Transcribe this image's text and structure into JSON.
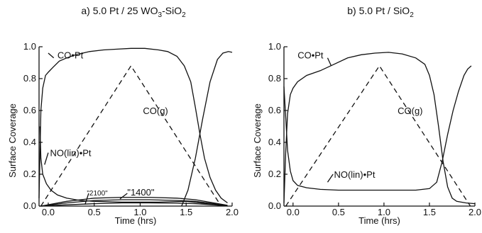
{
  "chart_data": [
    {
      "type": "line",
      "title_parts": [
        "a)  5.0 Pt / 25 WO",
        "3",
        "-SiO",
        "2"
      ],
      "xlabel": "Time (hrs)",
      "ylabel": "Surface Coverage",
      "xlim": [
        -0.1,
        2.0
      ],
      "ylim": [
        0.0,
        1.0
      ],
      "xticks": [
        0.0,
        0.5,
        1.0,
        1.5,
        2.0
      ],
      "yticks": [
        0.0,
        0.2,
        0.4,
        0.6,
        0.8,
        1.0
      ],
      "xtick_labels": [
        "0.0",
        "0.5",
        "1.0",
        "1.5",
        "2.0"
      ],
      "ytick_labels": [
        "0.0",
        "0.2",
        "0.4",
        "0.6",
        "0.8",
        "1.0"
      ],
      "grid": false,
      "series": [
        {
          "name": "CO•Pt",
          "style": "solid",
          "points": [
            [
              -0.1,
              0.05
            ],
            [
              -0.08,
              0.6
            ],
            [
              -0.06,
              0.74
            ],
            [
              -0.03,
              0.82
            ],
            [
              0.0,
              0.84
            ],
            [
              0.05,
              0.87
            ],
            [
              0.12,
              0.91
            ],
            [
              0.2,
              0.93
            ],
            [
              0.3,
              0.95
            ],
            [
              0.45,
              0.97
            ],
            [
              0.6,
              0.98
            ],
            [
              0.75,
              0.985
            ],
            [
              0.9,
              0.99
            ],
            [
              1.05,
              0.99
            ],
            [
              1.2,
              0.98
            ],
            [
              1.3,
              0.97
            ],
            [
              1.4,
              0.94
            ],
            [
              1.48,
              0.88
            ],
            [
              1.55,
              0.78
            ],
            [
              1.6,
              0.62
            ],
            [
              1.65,
              0.45
            ],
            [
              1.7,
              0.3
            ],
            [
              1.76,
              0.18
            ],
            [
              1.82,
              0.1
            ],
            [
              1.88,
              0.05
            ],
            [
              1.95,
              0.02
            ]
          ]
        },
        {
          "name": "CO(g)",
          "style": "dashed",
          "points": [
            [
              -0.08,
              0.0
            ],
            [
              0.9,
              0.88
            ],
            [
              1.88,
              0.0
            ]
          ]
        },
        {
          "name": "NO(lin)•Pt",
          "style": "solid",
          "points": [
            [
              -0.09,
              0.5
            ],
            [
              -0.08,
              0.3
            ],
            [
              -0.06,
              0.2
            ],
            [
              -0.02,
              0.14
            ],
            [
              0.03,
              0.1
            ],
            [
              0.1,
              0.07
            ],
            [
              0.2,
              0.05
            ],
            [
              0.35,
              0.035
            ],
            [
              0.5,
              0.03
            ],
            [
              0.8,
              0.025
            ],
            [
              1.2,
              0.025
            ],
            [
              1.5,
              0.03
            ],
            [
              1.65,
              0.02
            ],
            [
              1.8,
              0.01
            ],
            [
              1.95,
              0.0
            ]
          ]
        },
        {
          "name": "",
          "style": "solid",
          "points": [
            [
              1.45,
              0.0
            ],
            [
              1.52,
              0.1
            ],
            [
              1.6,
              0.3
            ],
            [
              1.68,
              0.55
            ],
            [
              1.76,
              0.78
            ],
            [
              1.84,
              0.92
            ],
            [
              1.9,
              0.96
            ],
            [
              1.96,
              0.97
            ],
            [
              2.0,
              0.965
            ]
          ]
        },
        {
          "name": "",
          "style": "solid",
          "points": [
            [
              -0.08,
              0.0
            ],
            [
              0.2,
              0.03
            ],
            [
              0.5,
              0.05
            ],
            [
              0.8,
              0.055
            ],
            [
              1.1,
              0.055
            ],
            [
              1.4,
              0.05
            ],
            [
              1.6,
              0.04
            ],
            [
              1.8,
              0.02
            ],
            [
              1.95,
              0.005
            ]
          ]
        },
        {
          "name": "",
          "style": "solid",
          "points": [
            [
              -0.08,
              0.0
            ],
            [
              0.2,
              0.02
            ],
            [
              0.5,
              0.035
            ],
            [
              0.8,
              0.04
            ],
            [
              1.1,
              0.04
            ],
            [
              1.4,
              0.035
            ],
            [
              1.6,
              0.03
            ],
            [
              1.8,
              0.015
            ],
            [
              1.95,
              0.003
            ]
          ]
        },
        {
          "name": "",
          "style": "solid",
          "points": [
            [
              -0.08,
              0.0
            ],
            [
              0.2,
              0.008
            ],
            [
              0.5,
              0.015
            ],
            [
              0.8,
              0.02
            ],
            [
              1.1,
              0.02
            ],
            [
              1.4,
              0.018
            ],
            [
              1.6,
              0.015
            ],
            [
              1.8,
              0.008
            ],
            [
              1.95,
              0.0
            ]
          ]
        }
      ],
      "annotations": [
        {
          "text": "CO•Pt",
          "x": 0.1,
          "y": 0.95,
          "leader": [
            [
              0.06,
              0.93
            ],
            [
              0.0,
              0.96
            ]
          ]
        },
        {
          "text": "CO(g)",
          "x": 1.03,
          "y": 0.6
        },
        {
          "text": "NO(lin)•Pt",
          "x": 0.02,
          "y": 0.335,
          "leader": [
            [
              0.0,
              0.335
            ],
            [
              -0.04,
              0.26
            ]
          ]
        },
        {
          "text": "\"2100\"",
          "x": 0.42,
          "y": 0.09,
          "small": true,
          "leader": [
            [
              0.44,
              0.08
            ],
            [
              0.4,
              0.01
            ]
          ]
        },
        {
          "text": "\"1400\"",
          "x": 0.86,
          "y": 0.09,
          "leader": [
            [
              0.86,
              0.08
            ],
            [
              0.78,
              0.045
            ]
          ]
        }
      ]
    },
    {
      "type": "line",
      "title_parts": [
        "b)  5.0 Pt / SiO",
        "2"
      ],
      "xlabel": "Time (hrs)",
      "ylabel": "Surface Coverage",
      "xlim": [
        -0.1,
        2.0
      ],
      "ylim": [
        0.0,
        1.0
      ],
      "xticks": [
        0.0,
        0.5,
        1.0,
        1.5,
        2.0
      ],
      "yticks": [
        0.0,
        0.2,
        0.4,
        0.6,
        0.8,
        1.0
      ],
      "xtick_labels": [
        "0.0",
        "0.5",
        "1.0",
        "1.5",
        "2.0"
      ],
      "ytick_labels": [
        "0.0",
        "0.2",
        "0.4",
        "0.6",
        "0.8",
        "1.0"
      ],
      "grid": false,
      "series": [
        {
          "name": "CO•Pt",
          "style": "solid",
          "points": [
            [
              -0.1,
              0.02
            ],
            [
              -0.08,
              0.35
            ],
            [
              -0.06,
              0.58
            ],
            [
              -0.03,
              0.7
            ],
            [
              0.0,
              0.74
            ],
            [
              0.05,
              0.78
            ],
            [
              0.15,
              0.82
            ],
            [
              0.3,
              0.85
            ],
            [
              0.45,
              0.89
            ],
            [
              0.6,
              0.93
            ],
            [
              0.75,
              0.95
            ],
            [
              0.9,
              0.96
            ],
            [
              1.05,
              0.965
            ],
            [
              1.2,
              0.955
            ],
            [
              1.35,
              0.93
            ],
            [
              1.45,
              0.89
            ],
            [
              1.5,
              0.82
            ],
            [
              1.55,
              0.7
            ],
            [
              1.6,
              0.5
            ],
            [
              1.65,
              0.28
            ],
            [
              1.7,
              0.12
            ],
            [
              1.75,
              0.05
            ],
            [
              1.8,
              0.03
            ],
            [
              1.9,
              0.02
            ],
            [
              2.0,
              0.015
            ]
          ]
        },
        {
          "name": "CO(g)",
          "style": "dashed",
          "points": [
            [
              -0.08,
              0.0
            ],
            [
              0.95,
              0.88
            ],
            [
              1.95,
              0.0
            ]
          ]
        },
        {
          "name": "NO(lin)•Pt",
          "style": "solid",
          "points": [
            [
              -0.1,
              0.75
            ],
            [
              -0.08,
              0.55
            ],
            [
              -0.06,
              0.35
            ],
            [
              -0.03,
              0.22
            ],
            [
              0.0,
              0.16
            ],
            [
              0.05,
              0.13
            ],
            [
              0.15,
              0.115
            ],
            [
              0.3,
              0.105
            ],
            [
              0.5,
              0.1
            ],
            [
              0.8,
              0.1
            ],
            [
              1.1,
              0.1
            ],
            [
              1.35,
              0.1
            ],
            [
              1.5,
              0.11
            ],
            [
              1.58,
              0.15
            ],
            [
              1.64,
              0.28
            ],
            [
              1.7,
              0.45
            ],
            [
              1.76,
              0.6
            ],
            [
              1.82,
              0.72
            ],
            [
              1.88,
              0.82
            ],
            [
              1.92,
              0.86
            ],
            [
              1.96,
              0.88
            ]
          ]
        }
      ],
      "annotations": [
        {
          "text": "CO•Pt",
          "x": 0.05,
          "y": 0.95,
          "leader": [
            [
              0.38,
              0.93
            ],
            [
              0.42,
              0.88
            ]
          ]
        },
        {
          "text": "CO(g)",
          "x": 1.15,
          "y": 0.6
        },
        {
          "text": "NO(lin)•Pt",
          "x": 0.45,
          "y": 0.2,
          "leader": [
            [
              0.44,
              0.2
            ],
            [
              0.38,
              0.15
            ]
          ]
        }
      ]
    }
  ]
}
